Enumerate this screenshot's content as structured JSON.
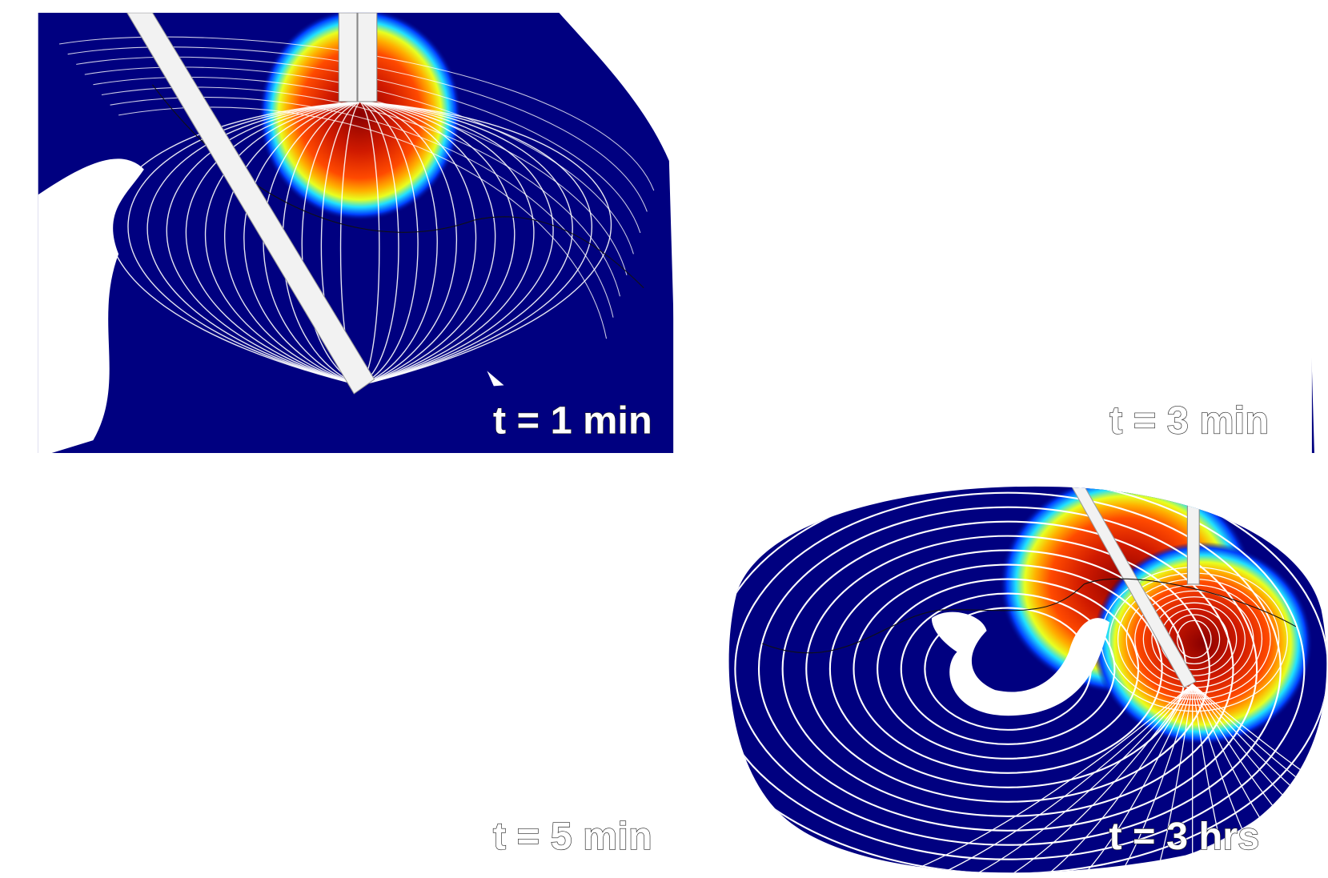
{
  "panels": [
    {
      "label": "t = 1 min"
    },
    {
      "label": "t = 3 min"
    },
    {
      "label": "t = 5 min"
    },
    {
      "label": "t = 3 hrs"
    }
  ]
}
